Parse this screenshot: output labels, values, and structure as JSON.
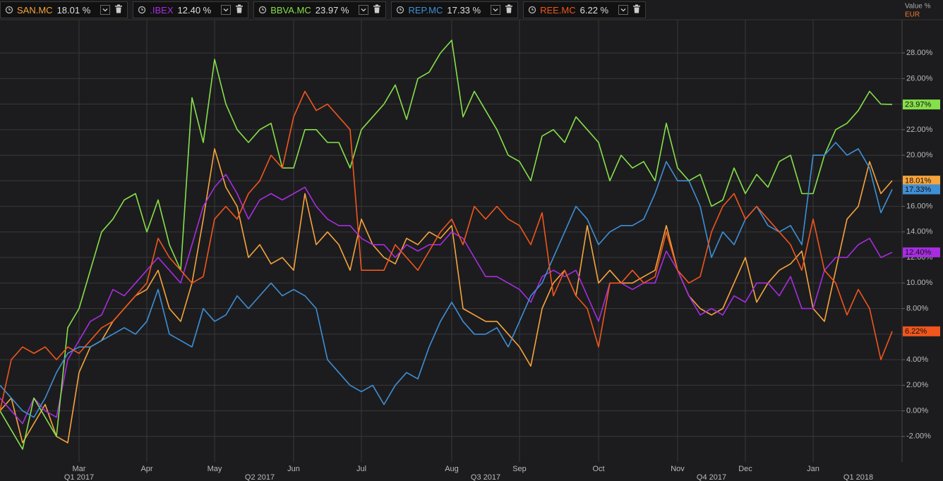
{
  "chart_data": {
    "type": "line",
    "y_axis_title": "Value %",
    "currency": "EUR",
    "categories": [
      null,
      null,
      null,
      null,
      null,
      null,
      null,
      "Mar",
      null,
      null,
      null,
      null,
      null,
      "Apr",
      null,
      null,
      null,
      null,
      null,
      "May",
      null,
      null,
      null,
      null,
      null,
      null,
      "Jun",
      null,
      null,
      null,
      null,
      null,
      "Jul",
      null,
      null,
      null,
      null,
      null,
      null,
      null,
      "Aug",
      null,
      null,
      null,
      null,
      null,
      "Sep",
      null,
      null,
      null,
      null,
      null,
      null,
      "Oct",
      null,
      null,
      null,
      null,
      null,
      null,
      "Nov",
      null,
      null,
      null,
      null,
      null,
      "Dec",
      null,
      null,
      null,
      null,
      null,
      "Jan",
      null,
      null,
      null,
      null,
      null,
      null,
      null
    ],
    "quarter_labels": [
      null,
      null,
      null,
      null,
      null,
      null,
      null,
      "Q1 2017",
      null,
      null,
      null,
      null,
      null,
      null,
      null,
      null,
      null,
      null,
      null,
      null,
      null,
      null,
      null,
      "Q2 2017",
      null,
      null,
      null,
      null,
      null,
      null,
      null,
      null,
      null,
      null,
      null,
      null,
      null,
      null,
      null,
      null,
      null,
      null,
      null,
      "Q3 2017",
      null,
      null,
      null,
      null,
      null,
      null,
      null,
      null,
      null,
      null,
      null,
      null,
      null,
      null,
      null,
      null,
      null,
      null,
      null,
      "Q4 2017",
      null,
      null,
      null,
      null,
      null,
      null,
      null,
      null,
      null,
      null,
      null,
      null,
      "Q1 2018",
      null,
      null,
      null
    ],
    "ylim": [
      -4,
      30.6
    ],
    "yticks": [
      {
        "value": -2,
        "label": "-2.00%"
      },
      {
        "value": 0,
        "label": "0.00%"
      },
      {
        "value": 2,
        "label": "2.00%"
      },
      {
        "value": 4,
        "label": "4.00%"
      },
      {
        "value": 6,
        "label": "6.00%"
      },
      {
        "value": 8,
        "label": "8.00%"
      },
      {
        "value": 10,
        "label": "10.00%"
      },
      {
        "value": 12,
        "label": "12.00%"
      },
      {
        "value": 14,
        "label": "14.00%"
      },
      {
        "value": 16,
        "label": "16.00%"
      },
      {
        "value": 18,
        "label": "18.00%"
      },
      {
        "value": 20,
        "label": "20.00%"
      },
      {
        "value": 22,
        "label": "22.00%"
      },
      {
        "value": 24,
        "label": "24.00%"
      },
      {
        "value": 26,
        "label": "26.00%"
      },
      {
        "value": 28,
        "label": "28.00%"
      }
    ],
    "grid": true,
    "series": [
      {
        "name": "SAN.MC",
        "color": "#f7a43c",
        "legend_value": "18.01 %",
        "end_label": "18.01%",
        "values": [
          0,
          1,
          -2.5,
          -1,
          0.5,
          -2,
          -2.5,
          3,
          5,
          5.5,
          7,
          8,
          9,
          9.5,
          11,
          8,
          7,
          10,
          15,
          20.5,
          17.5,
          16,
          12,
          13,
          11.5,
          12,
          11,
          17,
          13,
          14,
          13,
          11,
          15,
          13,
          12,
          11.5,
          13.5,
          13,
          14,
          13.5,
          14.5,
          8,
          7.5,
          7,
          7,
          6,
          5,
          3.5,
          8,
          10,
          11,
          9,
          14.5,
          10,
          11,
          10,
          10,
          10.5,
          11,
          14.5,
          11,
          9,
          8,
          7.5,
          8,
          10,
          12,
          8.5,
          10,
          11,
          11.5,
          12.5,
          8,
          7,
          11,
          15,
          16,
          19.5,
          17,
          18.01
        ]
      },
      {
        "name": ".IBEX",
        "color": "#a72de0",
        "legend_value": "12.40 %",
        "end_label": "12.40%",
        "values": [
          1,
          0,
          -1,
          1,
          0,
          -0.5,
          4,
          5.5,
          7,
          7.5,
          9.5,
          9,
          10,
          11,
          12,
          11,
          10,
          13,
          16,
          17.5,
          18.5,
          17,
          15,
          16.5,
          17,
          16.5,
          17,
          17.5,
          16,
          15,
          14.5,
          14.5,
          13.5,
          13,
          13,
          12,
          13,
          12.5,
          13,
          13,
          14,
          13.5,
          12,
          10.5,
          10.5,
          10,
          9.5,
          8.5,
          10.5,
          11,
          10.5,
          11,
          9,
          7,
          10,
          10,
          9.5,
          10,
          10,
          12.5,
          11,
          9,
          7.5,
          8,
          7.5,
          9,
          8.5,
          10,
          10,
          9,
          10.5,
          8,
          8,
          11,
          12,
          12,
          13,
          13.5,
          12,
          12.4
        ]
      },
      {
        "name": "BBVA.MC",
        "color": "#86e04a",
        "legend_value": "23.97 %",
        "end_label": "23.97%",
        "values": [
          0,
          -1.5,
          -3,
          1,
          -0.5,
          -2,
          6.5,
          8,
          11,
          14,
          15,
          16.5,
          17,
          14,
          16.5,
          13,
          11,
          24.5,
          21,
          27.5,
          24,
          22,
          21,
          22,
          22.5,
          19,
          19,
          22,
          22,
          21,
          21,
          19,
          22,
          23,
          24,
          25.5,
          22.8,
          26,
          26.5,
          28,
          29,
          23,
          25,
          23.5,
          22,
          20,
          19.5,
          18,
          21.5,
          22,
          21,
          23,
          22,
          21,
          18,
          20,
          19,
          19.5,
          18,
          22.5,
          19,
          18,
          18.5,
          16,
          16.5,
          19,
          17,
          18.5,
          17.5,
          19.5,
          20,
          17,
          17,
          20,
          22,
          22.5,
          23.5,
          25,
          24,
          23.97
        ]
      },
      {
        "name": "REP.MC",
        "color": "#3f8fd6",
        "legend_value": "17.33 %",
        "end_label": "17.33%",
        "values": [
          2,
          1,
          0,
          -0.5,
          1,
          3,
          4.5,
          5,
          5,
          5.5,
          6,
          6.5,
          6,
          7,
          9.5,
          6,
          5.5,
          5,
          8,
          7,
          7.5,
          9,
          8,
          9,
          10,
          9,
          9.5,
          9,
          8,
          4,
          3,
          2,
          1.5,
          2,
          0.5,
          2,
          3,
          2.5,
          5,
          7,
          8.5,
          7,
          6,
          6,
          6.5,
          5,
          7,
          9,
          10,
          12,
          14,
          16,
          15,
          13,
          14,
          14.5,
          14.5,
          15,
          17,
          19.5,
          18,
          18,
          16,
          12,
          14,
          13,
          15,
          16,
          14.5,
          14,
          14.5,
          13,
          20,
          20,
          21,
          20,
          20.5,
          19,
          15.5,
          17.33
        ]
      },
      {
        "name": "REE.MC",
        "color": "#f0561d",
        "legend_value": "6.22 %",
        "end_label": "6.22%",
        "values": [
          0,
          4,
          5,
          4.5,
          5,
          4,
          5,
          4.5,
          5.5,
          6.5,
          7,
          8,
          9,
          10,
          13.5,
          12,
          11,
          10,
          10.5,
          15,
          16,
          15,
          17,
          18,
          20,
          19,
          23,
          25,
          23.5,
          24,
          23,
          22,
          11,
          11,
          11,
          13,
          12,
          11,
          12.5,
          14,
          15,
          13,
          16,
          15,
          16,
          15,
          14.5,
          13,
          15.5,
          9,
          11,
          9,
          8,
          5,
          10,
          10,
          11,
          10,
          10.5,
          14,
          11,
          10,
          10.5,
          14,
          16,
          17,
          15,
          16,
          15,
          14,
          13,
          11,
          15,
          11,
          10,
          7.5,
          9.5,
          8,
          4,
          6.22
        ]
      }
    ]
  }
}
